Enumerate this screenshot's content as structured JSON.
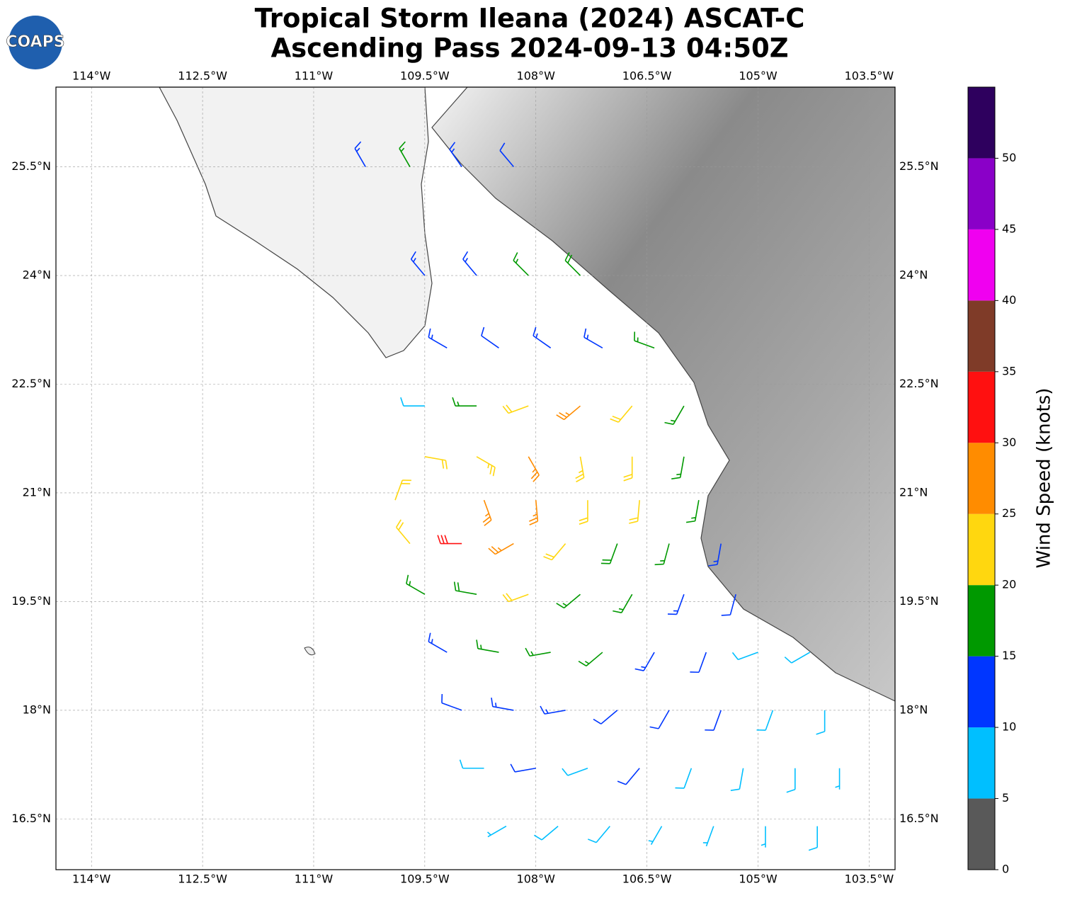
{
  "chart_data": {
    "type": "barbs",
    "title": "Tropical Storm Ileana (2024) ASCAT-C",
    "subtitle": "Ascending Pass 2024-09-13 04:50Z",
    "logo": "COAPS",
    "xlim": [
      -114.48,
      -103.15
    ],
    "ylim": [
      15.8,
      26.6
    ],
    "xticks": [
      {
        "value": -114,
        "label": "114°W"
      },
      {
        "value": -112.5,
        "label": "112.5°W"
      },
      {
        "value": -111,
        "label": "111°W"
      },
      {
        "value": -109.5,
        "label": "109.5°W"
      },
      {
        "value": -108,
        "label": "108°W"
      },
      {
        "value": -106.5,
        "label": "106.5°W"
      },
      {
        "value": -105,
        "label": "105°W"
      },
      {
        "value": -103.5,
        "label": "103.5°W"
      }
    ],
    "yticks": [
      {
        "value": 16.5,
        "label": "16.5°N"
      },
      {
        "value": 18,
        "label": "18°N"
      },
      {
        "value": 19.5,
        "label": "19.5°N"
      },
      {
        "value": 21,
        "label": "21°N"
      },
      {
        "value": 22.5,
        "label": "22.5°N"
      },
      {
        "value": 24,
        "label": "24°N"
      },
      {
        "value": 25.5,
        "label": "25.5°N"
      }
    ],
    "grid": true,
    "colorbar": {
      "label": "Wind Speed (knots)",
      "lim": [
        0,
        55
      ],
      "ticks": [
        0,
        5,
        10,
        15,
        20,
        25,
        30,
        35,
        40,
        45,
        50
      ],
      "colors": [
        "#595959",
        "#00bfff",
        "#0036ff",
        "#009900",
        "#ffd70f",
        "#ff8c00",
        "#ff1010",
        "#7f3b28",
        "#f000f0",
        "#8a00c8",
        "#2e005e"
      ]
    },
    "lon": [
      -110.3,
      -109.7,
      -109.0,
      -108.3,
      -109.5,
      -108.8,
      -108.1,
      -107.4,
      -109.2,
      -108.5,
      -107.8,
      -107.1,
      -106.4,
      -109.5,
      -108.8,
      -108.1,
      -107.4,
      -106.7,
      -106.0,
      -109.5,
      -108.8,
      -108.1,
      -107.4,
      -106.7,
      -106.0,
      -109.9,
      -108.7,
      -108.0,
      -107.3,
      -106.6,
      -105.8,
      -109.7,
      -109.0,
      -108.3,
      -107.6,
      -106.9,
      -106.2,
      -105.5,
      -109.5,
      -108.8,
      -108.1,
      -107.4,
      -106.7,
      -106.0,
      -105.3,
      -109.2,
      -108.5,
      -107.8,
      -107.1,
      -106.4,
      -105.7,
      -105.0,
      -104.3,
      -109.0,
      -108.3,
      -107.6,
      -106.9,
      -106.2,
      -105.5,
      -104.8,
      -104.1,
      -108.7,
      -108.0,
      -107.3,
      -106.6,
      -105.9,
      -105.2,
      -104.5,
      -103.9,
      -108.4,
      -107.7,
      -107.0,
      -106.3,
      -105.6,
      -104.9,
      -104.2
    ],
    "lat": [
      25.5,
      25.5,
      25.5,
      25.5,
      24,
      24,
      24,
      24,
      23,
      23,
      23,
      23,
      23,
      22.2,
      22.2,
      22.2,
      22.2,
      22.2,
      22.2,
      21.5,
      21.5,
      21.5,
      21.5,
      21.5,
      21.5,
      20.9,
      20.9,
      20.9,
      20.9,
      20.9,
      20.9,
      20.3,
      20.3,
      20.3,
      20.3,
      20.3,
      20.3,
      20.3,
      19.6,
      19.6,
      19.6,
      19.6,
      19.6,
      19.6,
      19.6,
      18.8,
      18.8,
      18.8,
      18.8,
      18.8,
      18.8,
      18.8,
      18.8,
      18,
      18,
      18,
      18,
      18,
      18,
      18,
      18,
      17.2,
      17.2,
      17.2,
      17.2,
      17.2,
      17.2,
      17.2,
      17.2,
      16.4,
      16.4,
      16.4,
      16.4,
      16.4,
      16.4,
      16.4
    ],
    "speed": [
      14,
      17,
      13,
      12,
      13,
      14,
      15,
      18,
      13,
      12,
      14,
      13,
      16,
      9,
      16,
      22,
      27,
      22,
      17,
      22,
      24,
      27,
      24,
      22,
      17,
      22,
      27,
      25,
      22,
      22,
      16,
      22,
      32,
      27,
      22,
      18,
      16,
      14,
      17,
      18,
      20,
      17,
      16,
      14,
      12,
      13,
      16,
      16,
      15,
      13,
      12,
      9,
      8,
      11,
      13,
      14,
      12,
      12,
      11,
      9,
      8,
      8,
      11,
      9,
      12,
      8,
      8,
      8,
      7,
      7,
      8,
      8,
      7,
      6,
      5,
      8
    ],
    "direction": [
      330,
      330,
      325,
      320,
      320,
      320,
      315,
      315,
      300,
      305,
      305,
      300,
      290,
      270,
      270,
      250,
      230,
      220,
      210,
      100,
      120,
      150,
      170,
      180,
      190,
      20,
      160,
      175,
      180,
      185,
      190,
      320,
      270,
      240,
      220,
      200,
      195,
      190,
      300,
      280,
      250,
      230,
      210,
      200,
      195,
      300,
      280,
      260,
      230,
      210,
      200,
      250,
      240,
      290,
      280,
      260,
      230,
      210,
      200,
      200,
      180,
      270,
      260,
      250,
      220,
      200,
      190,
      180,
      180,
      240,
      230,
      220,
      210,
      200,
      180,
      180
    ]
  }
}
